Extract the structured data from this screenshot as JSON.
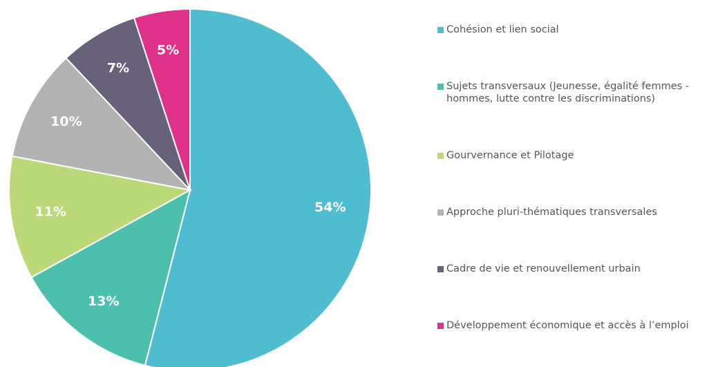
{
  "chart_data": {
    "type": "pie",
    "categories": [
      "Cohésion et lien social",
      "Sujets transversaux (Jeunesse, égalité femmes - hommes, lutte contre les discriminations)",
      "Gourvernance et Pilotage",
      "Approche pluri-thématiques transversales",
      "Cadre de vie et renouvellement urbain",
      "Développement économique et accès à l’emploi"
    ],
    "values": [
      54,
      13,
      11,
      10,
      7,
      5
    ],
    "value_labels": [
      "54%",
      "13%",
      "11%",
      "10%",
      "7%",
      "5%"
    ],
    "colors": [
      "#4fbccf",
      "#4dbfad",
      "#bcd97a",
      "#b3b3b3",
      "#67627a",
      "#e0318a"
    ],
    "legend": "right"
  }
}
